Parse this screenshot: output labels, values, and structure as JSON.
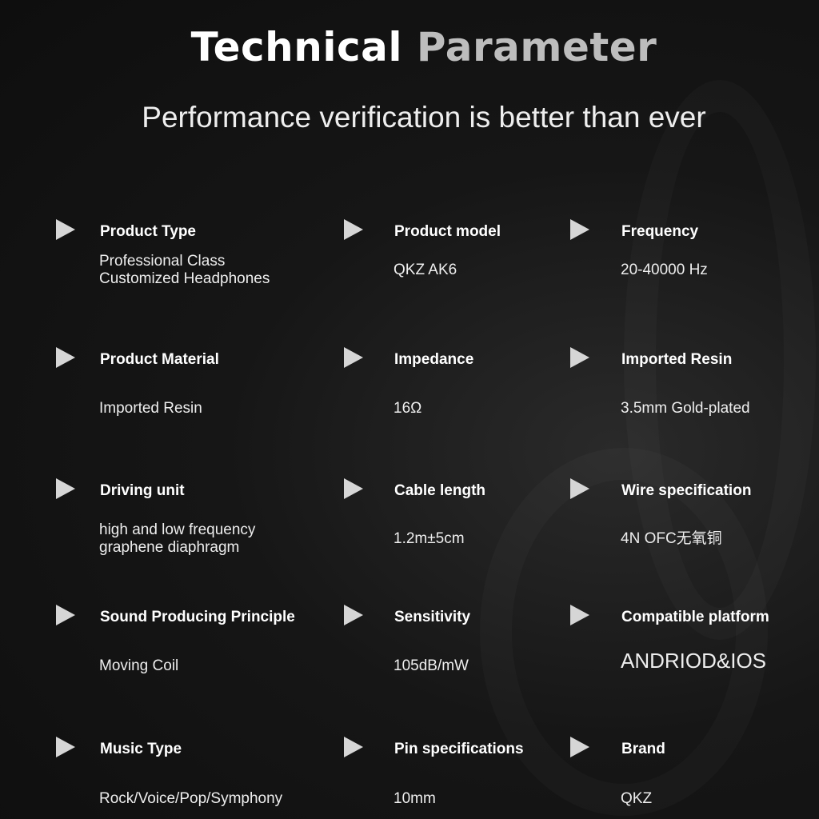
{
  "title": {
    "part1": "Technical",
    "part2": "Parameter"
  },
  "subtitle": "Performance verification is better than ever",
  "specs": [
    {
      "label": "Product Type",
      "value": "Professional Class\nCustomized Headphones"
    },
    {
      "label": "Product model",
      "value": "QKZ AK6"
    },
    {
      "label": "Frequency",
      "value": "20-40000 Hz"
    },
    {
      "label": "Product Material",
      "value": "Imported Resin"
    },
    {
      "label": "Impedance",
      "value": "16Ω"
    },
    {
      "label": "Imported Resin",
      "value": "3.5mm Gold-plated"
    },
    {
      "label": "Driving unit",
      "value": "high and low frequency\ngraphene diaphragm"
    },
    {
      "label": "Cable length",
      "value": "1.2m±5cm"
    },
    {
      "label": "Wire specification",
      "value": "4N OFC无氧铜"
    },
    {
      "label": "Sound Producing Principle",
      "value": "Moving Coil"
    },
    {
      "label": "Sensitivity",
      "value": "105dB/mW"
    },
    {
      "label": "Compatible platform",
      "value": "ANDRIOD&IOS"
    },
    {
      "label": "Music Type",
      "value": "Rock/Voice/Pop/Symphony"
    },
    {
      "label": "Pin specifications",
      "value": "10mm"
    },
    {
      "label": "Brand",
      "value": "QKZ"
    }
  ],
  "icons": {
    "bullet": "triangle-right-icon"
  }
}
